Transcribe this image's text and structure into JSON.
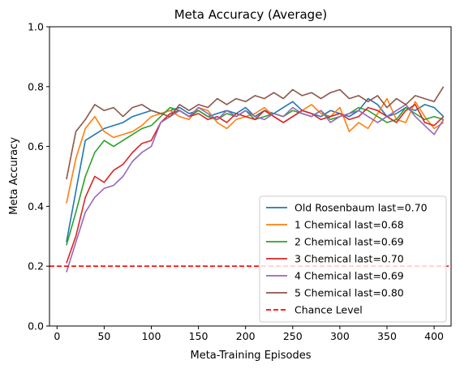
{
  "chart_data": {
    "type": "line",
    "title": "Meta Accuracy (Average)",
    "xlabel": "Meta-Training Episodes",
    "ylabel": "Meta Accuracy",
    "xlim": [
      -8,
      418
    ],
    "ylim": [
      0.0,
      1.0
    ],
    "xticks": [
      "0",
      "50",
      "100",
      "150",
      "200",
      "250",
      "300",
      "350",
      "400"
    ],
    "yticks": [
      "0.0",
      "0.2",
      "0.4",
      "0.6",
      "0.8",
      "1.0"
    ],
    "grid": false,
    "legend_position": "lower-right",
    "x": [
      10,
      20,
      30,
      40,
      50,
      60,
      70,
      80,
      90,
      100,
      110,
      120,
      130,
      140,
      150,
      160,
      170,
      180,
      190,
      200,
      210,
      220,
      230,
      240,
      250,
      260,
      270,
      280,
      290,
      300,
      310,
      320,
      330,
      340,
      350,
      360,
      370,
      380,
      390,
      400,
      410
    ],
    "series": [
      {
        "name": "Old Rosenbaum last=0.70",
        "color": "#1f77b4",
        "values": [
          0.28,
          0.45,
          0.62,
          0.64,
          0.66,
          0.67,
          0.68,
          0.7,
          0.71,
          0.72,
          0.71,
          0.72,
          0.73,
          0.71,
          0.72,
          0.7,
          0.71,
          0.72,
          0.71,
          0.73,
          0.7,
          0.72,
          0.71,
          0.73,
          0.75,
          0.72,
          0.71,
          0.7,
          0.72,
          0.71,
          0.7,
          0.72,
          0.76,
          0.74,
          0.7,
          0.71,
          0.73,
          0.72,
          0.74,
          0.73,
          0.7
        ]
      },
      {
        "name": "1 Chemical last=0.68",
        "color": "#ff7f0e",
        "values": [
          0.41,
          0.56,
          0.66,
          0.7,
          0.65,
          0.63,
          0.64,
          0.65,
          0.67,
          0.7,
          0.71,
          0.72,
          0.7,
          0.69,
          0.73,
          0.72,
          0.68,
          0.66,
          0.69,
          0.7,
          0.71,
          0.73,
          0.7,
          0.68,
          0.7,
          0.72,
          0.74,
          0.71,
          0.7,
          0.73,
          0.65,
          0.68,
          0.66,
          0.71,
          0.76,
          0.69,
          0.68,
          0.75,
          0.7,
          0.66,
          0.68
        ]
      },
      {
        "name": "2 Chemical last=0.69",
        "color": "#2ca02c",
        "values": [
          0.27,
          0.38,
          0.5,
          0.58,
          0.62,
          0.6,
          0.62,
          0.64,
          0.66,
          0.67,
          0.7,
          0.73,
          0.72,
          0.7,
          0.72,
          0.7,
          0.69,
          0.71,
          0.7,
          0.72,
          0.69,
          0.7,
          0.71,
          0.7,
          0.72,
          0.71,
          0.7,
          0.72,
          0.69,
          0.7,
          0.71,
          0.73,
          0.72,
          0.7,
          0.68,
          0.69,
          0.73,
          0.71,
          0.69,
          0.7,
          0.69
        ]
      },
      {
        "name": "3 Chemical last=0.70",
        "color": "#d62728",
        "values": [
          0.21,
          0.3,
          0.43,
          0.5,
          0.48,
          0.52,
          0.54,
          0.58,
          0.61,
          0.62,
          0.68,
          0.71,
          0.72,
          0.7,
          0.71,
          0.69,
          0.7,
          0.68,
          0.71,
          0.7,
          0.69,
          0.72,
          0.7,
          0.68,
          0.7,
          0.72,
          0.71,
          0.69,
          0.7,
          0.71,
          0.69,
          0.7,
          0.73,
          0.72,
          0.7,
          0.68,
          0.72,
          0.74,
          0.68,
          0.67,
          0.7
        ]
      },
      {
        "name": "4 Chemical last=0.69",
        "color": "#9467bd",
        "values": [
          0.18,
          0.28,
          0.38,
          0.43,
          0.46,
          0.47,
          0.5,
          0.55,
          0.58,
          0.6,
          0.68,
          0.7,
          0.72,
          0.7,
          0.73,
          0.71,
          0.69,
          0.72,
          0.7,
          0.72,
          0.7,
          0.69,
          0.71,
          0.7,
          0.73,
          0.71,
          0.7,
          0.72,
          0.68,
          0.7,
          0.71,
          0.72,
          0.7,
          0.68,
          0.7,
          0.72,
          0.74,
          0.7,
          0.67,
          0.64,
          0.69
        ]
      },
      {
        "name": "5 Chemical last=0.80",
        "color": "#8c564b",
        "values": [
          0.49,
          0.65,
          0.69,
          0.74,
          0.72,
          0.73,
          0.7,
          0.73,
          0.74,
          0.72,
          0.71,
          0.7,
          0.74,
          0.72,
          0.74,
          0.73,
          0.76,
          0.74,
          0.76,
          0.75,
          0.77,
          0.76,
          0.78,
          0.76,
          0.79,
          0.77,
          0.78,
          0.76,
          0.78,
          0.79,
          0.76,
          0.77,
          0.75,
          0.77,
          0.73,
          0.76,
          0.74,
          0.77,
          0.76,
          0.75,
          0.8
        ]
      }
    ],
    "reference_line": {
      "name": "Chance Level",
      "color": "#ff0000",
      "value": 0.2,
      "style": "dashed"
    }
  }
}
